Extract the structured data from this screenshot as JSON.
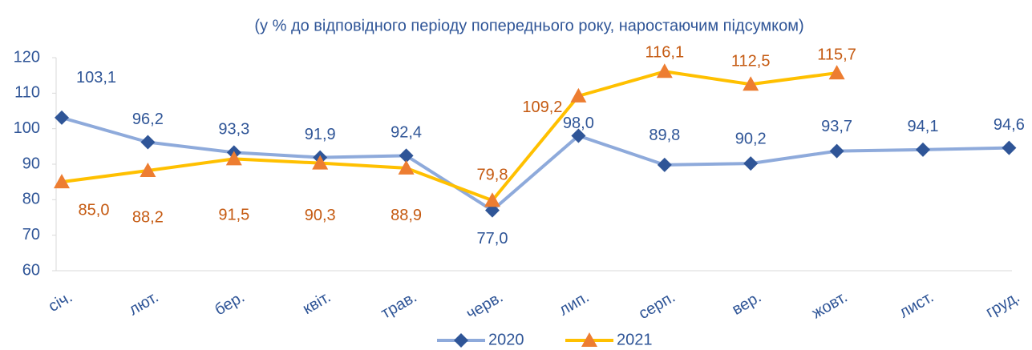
{
  "chart_data": {
    "type": "line",
    "subtitle": "(у % до відповідного періоду попереднього року, наростаючим підсумком)",
    "categories": [
      "січ.",
      "лют.",
      "бер.",
      "квіт.",
      "трав.",
      "черв.",
      "лип.",
      "серп.",
      "вер.",
      "жовт.",
      "лист.",
      "груд."
    ],
    "series": [
      {
        "name": "2020",
        "color": "#8eaadb",
        "marker_color": "#2f5597",
        "label_color": "#2f5597",
        "marker": "diamond",
        "values": [
          103.1,
          96.2,
          93.3,
          91.9,
          92.4,
          77.0,
          98.0,
          89.8,
          90.2,
          93.7,
          94.1,
          94.6
        ],
        "value_labels": [
          "103,1",
          "96,2",
          "93,3",
          "91,9",
          "92,4",
          "77,0",
          "98,0",
          "89,8",
          "90,2",
          "93,7",
          "94,1",
          "94,6"
        ]
      },
      {
        "name": "2021",
        "color": "#ffc000",
        "marker_color": "#ed7d31",
        "label_color": "#c55a11",
        "marker": "triangle",
        "values": [
          85.0,
          88.2,
          91.5,
          90.3,
          88.9,
          79.8,
          109.2,
          116.1,
          112.5,
          115.7,
          null,
          null
        ],
        "value_labels": [
          "85,0",
          "88,2",
          "91,5",
          "90,3",
          "88,9",
          "79,8",
          "109,2",
          "116,1",
          "112,5",
          "115,7",
          null,
          null
        ]
      }
    ],
    "ylim": [
      60,
      120
    ],
    "yticks": [
      60,
      70,
      80,
      90,
      100,
      110,
      120
    ],
    "grid": false,
    "legend": "bottom"
  }
}
